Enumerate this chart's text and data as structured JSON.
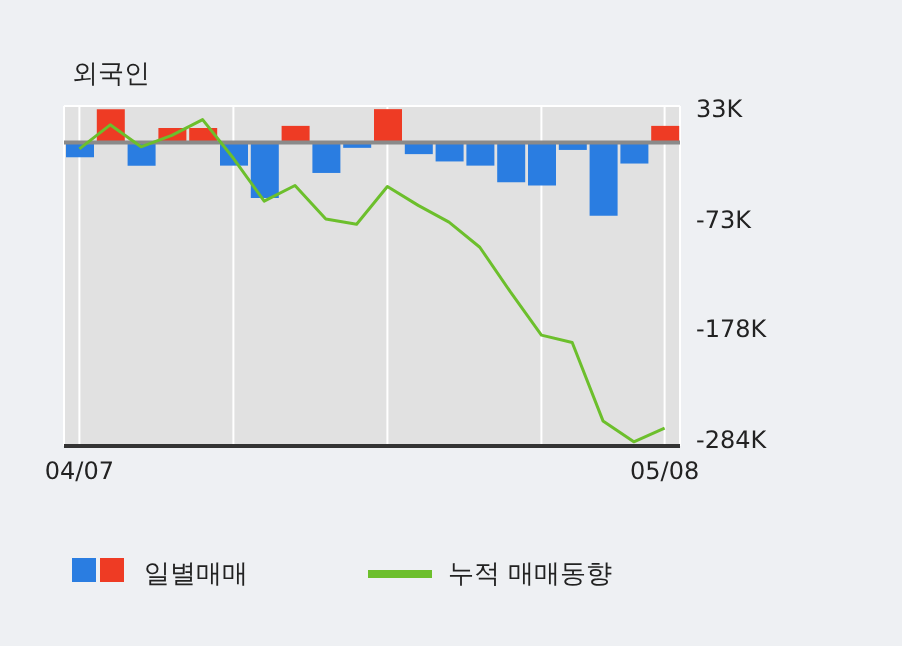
{
  "chart_data": {
    "type": "bar",
    "title": "외국인",
    "categories": [
      "04/07",
      null,
      null,
      null,
      null,
      null,
      null,
      null,
      null,
      null,
      null,
      null,
      null,
      null,
      null,
      null,
      null,
      null,
      null,
      "05/08"
    ],
    "series": [
      {
        "name": "일별매매",
        "colors": [
          "#2a7de1",
          "#ee3b24",
          "#2a7de1",
          "#ee3b24",
          "#ee3b24",
          "#2a7de1",
          "#2a7de1",
          "#ee3b24",
          "#2a7de1",
          "#2a7de1",
          "#ee3b24",
          "#2a7de1",
          "#2a7de1",
          "#2a7de1",
          "#2a7de1",
          "#2a7de1",
          "#2a7de1",
          "#2a7de1",
          "#2a7de1",
          "#ee3b24"
        ],
        "values": [
          -14,
          32,
          -22,
          14,
          14,
          -22,
          -53,
          16,
          -29,
          -5,
          32,
          -11,
          -18,
          -22,
          -38,
          -41,
          -7,
          -70,
          -20,
          16
        ]
      },
      {
        "name": "누적 매매동향",
        "type": "line",
        "color": "#6cbf2c",
        "values": [
          -6,
          17,
          -4,
          7,
          22,
          -15,
          -56,
          -41,
          -73,
          -78,
          -42,
          -60,
          -76,
          -100,
          -143,
          -184,
          -191,
          -266,
          -286,
          -273
        ]
      }
    ],
    "ylim": [
      -290,
      35
    ],
    "yticks": [
      {
        "value": 33,
        "label": "33K"
      },
      {
        "value": -73,
        "label": "-73K"
      },
      {
        "value": -178,
        "label": "-178K"
      },
      {
        "value": -284,
        "label": "-284K"
      }
    ],
    "ref_lines": [
      {
        "axis": "y",
        "value": 0,
        "color": "#8a8a8a"
      }
    ],
    "grid": true,
    "legend": "bottom",
    "marker": "none",
    "line_style": "solid"
  }
}
